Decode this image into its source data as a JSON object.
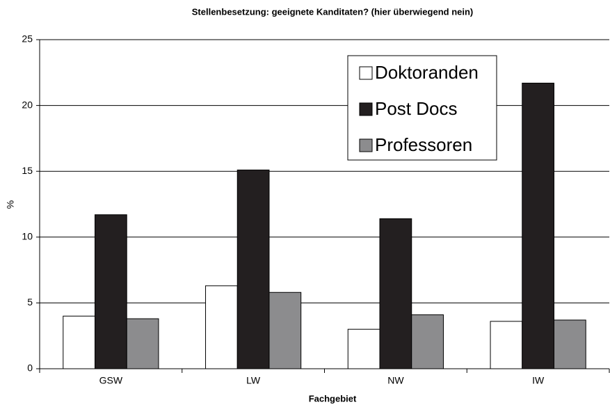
{
  "chart_data": {
    "type": "bar",
    "title": "Stellenbesetzung: geeignete Kanditaten? (hier überwiegend nein)",
    "x_label": "Fachgebiet",
    "y_label": "%",
    "categories": [
      "GSW",
      "LW",
      "NW",
      "IW"
    ],
    "series": [
      {
        "name": "Doktoranden",
        "color": "#ffffff",
        "values": [
          4.0,
          6.3,
          3.0,
          3.6
        ]
      },
      {
        "name": "Post Docs",
        "color": "#231f20",
        "values": [
          11.7,
          15.1,
          11.4,
          21.7
        ]
      },
      {
        "name": "Professoren",
        "color": "#8c8c8e",
        "values": [
          3.8,
          5.8,
          4.1,
          3.7
        ]
      }
    ],
    "ylim": [
      0,
      25
    ],
    "yticks": [
      0,
      5,
      10,
      15,
      20,
      25
    ],
    "grid": true,
    "legend": "upper right"
  }
}
